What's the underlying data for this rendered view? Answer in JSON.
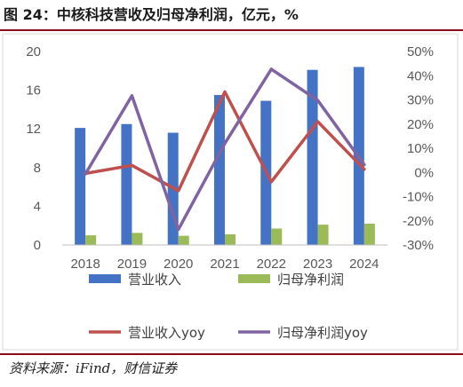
{
  "title": "图 24：中核科技营收及归母净利润，亿元，%",
  "source": "资料来源：iFind，财信证券",
  "colors": {
    "revenue": "#4472C4",
    "net_profit": "#9BBB59",
    "revenue_yoy": "#C0504D",
    "net_profit_yoy": "#8064A2",
    "accent_rule": "#8B0D18"
  },
  "chart_data": {
    "type": "bar",
    "categories": [
      "2018",
      "2019",
      "2020",
      "2021",
      "2022",
      "2023",
      "2024"
    ],
    "series": [
      {
        "name": "营业收入",
        "type": "bar",
        "axis": "left",
        "values": [
          12.1,
          12.5,
          11.6,
          15.5,
          14.9,
          18.1,
          18.4
        ]
      },
      {
        "name": "归母净利润",
        "type": "bar",
        "axis": "left",
        "values": [
          1.0,
          1.25,
          0.95,
          1.1,
          1.7,
          2.1,
          2.2
        ]
      },
      {
        "name": "营业收入yoy",
        "type": "line",
        "axis": "right",
        "values": [
          -0.4,
          2.9,
          -7.6,
          33.3,
          -3.9,
          21.0,
          1.3
        ]
      },
      {
        "name": "归母净利润yoy",
        "type": "line",
        "axis": "right",
        "values": [
          -0.6,
          31.7,
          -23.6,
          12.0,
          42.7,
          29.8,
          3.2
        ]
      }
    ],
    "y_left": {
      "min": 0,
      "max": 20,
      "ticks": [
        "0",
        "4",
        "8",
        "12",
        "16",
        "20"
      ]
    },
    "y_right": {
      "min": -30,
      "max": 50,
      "ticks": [
        "-30%",
        "-20%",
        "-10%",
        "0%",
        "10%",
        "20%",
        "30%",
        "40%",
        "50%"
      ]
    },
    "grid": false,
    "legend_position": "bottom"
  }
}
